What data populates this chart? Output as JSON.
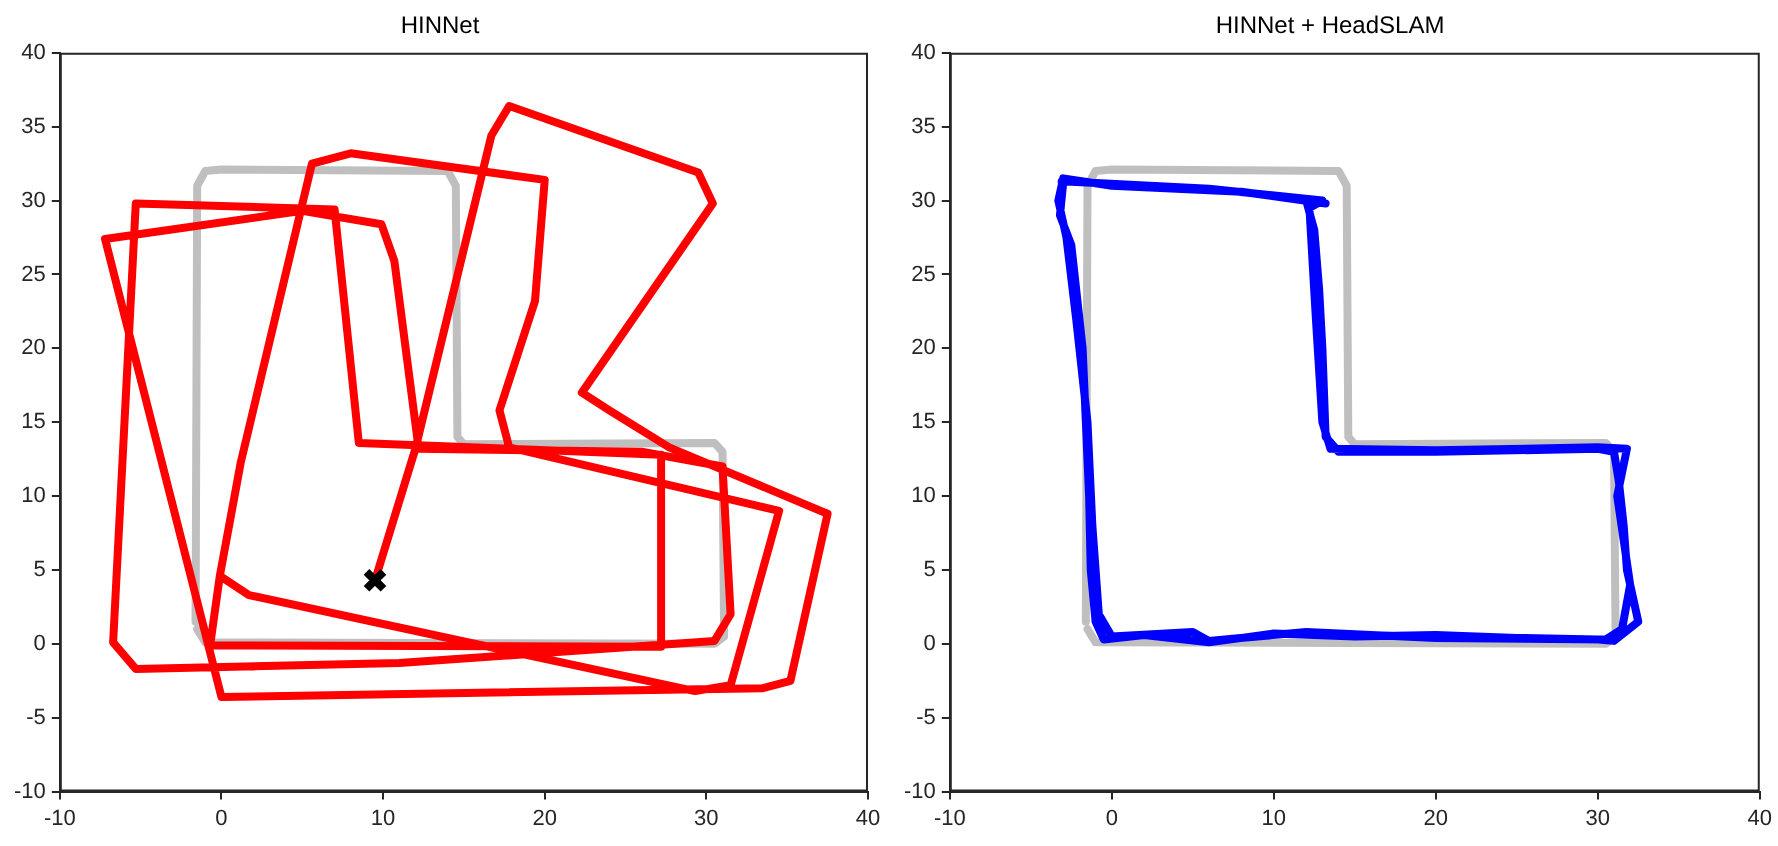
{
  "chart_data": [
    {
      "type": "line",
      "title": "HINNet",
      "xlim": [
        -10,
        40
      ],
      "ylim": [
        -10,
        40
      ],
      "xticks": [
        -10,
        0,
        10,
        20,
        30,
        40
      ],
      "yticks": [
        -10,
        -5,
        0,
        5,
        10,
        15,
        20,
        25,
        30,
        35,
        40
      ],
      "grid": false,
      "legend": false,
      "marker": "none",
      "line_style": "solid",
      "series": [
        {
          "type": "scatter",
          "color": "#000000",
          "marker": "cross",
          "x": [
            9.5
          ],
          "values": [
            4.3
          ]
        },
        {
          "color": "#ff0000",
          "x": [
            9.5,
            12,
            16.7,
            17.8,
            29.5,
            30.4,
            22.3,
            24,
            27.7,
            37.5,
            35.2,
            33.5,
            0,
            -7.2,
            5,
            9.9,
            10.7,
            12.2,
            26,
            31,
            31.5,
            30.5,
            11,
            -5.3,
            -6.7,
            -5.3,
            7,
            8.5,
            27.2,
            27.2,
            -0.7,
            -0.1,
            1.7,
            29.3,
            31.5,
            34.5,
            17.8,
            17.2,
            19.4,
            20,
            8,
            5.6,
            1.2,
            -0.1
          ],
          "values": [
            4.3,
            13.2,
            34.4,
            36.4,
            31.9,
            29.8,
            17,
            15.8,
            13.3,
            8.8,
            -2.5,
            -3,
            -3.6,
            27.4,
            29.3,
            28.4,
            25.9,
            13.2,
            13,
            12,
            2,
            0.2,
            -1.3,
            -1.7,
            0.1,
            29.8,
            29.4,
            13.6,
            12.8,
            -0.2,
            -0.1,
            4.6,
            3.3,
            -3.2,
            -2.8,
            9,
            13.3,
            15.8,
            23.2,
            31.4,
            33.2,
            32.5,
            12.3,
            4.6
          ]
        },
        {
          "color": "#bfbfbf",
          "x": [
            -1.6,
            -1.5,
            -1,
            0,
            14,
            14.5,
            14.6,
            15,
            30.5,
            31,
            31.1,
            30.5,
            -1,
            -1.5
          ],
          "values": [
            1.5,
            31,
            32,
            32.1,
            32,
            31,
            14,
            13.5,
            13.6,
            13,
            0.5,
            0,
            0.1,
            1
          ]
        }
      ]
    },
    {
      "type": "line",
      "title": "HINNet + HeadSLAM",
      "xlim": [
        -10,
        40
      ],
      "ylim": [
        -10,
        40
      ],
      "xticks": [
        -10,
        0,
        10,
        20,
        30,
        40
      ],
      "yticks": [
        -10,
        -5,
        0,
        5,
        10,
        15,
        20,
        25,
        30,
        35,
        40
      ],
      "grid": false,
      "legend": false,
      "marker": "none",
      "line_style": "solid",
      "series": [
        {
          "color": "#0000ff",
          "x": [
            -3,
            -3.2,
            -2.5,
            -1.8,
            -1.6,
            -1.4,
            -1.3,
            -1,
            -0.5,
            2,
            6,
            10,
            15,
            20,
            25,
            30,
            31,
            32.5,
            31.8,
            31.6,
            31.3,
            31,
            30,
            20,
            14,
            13.2,
            13,
            12.8,
            12.5,
            12,
            13.2,
            8,
            0,
            -3,
            -3.3,
            -2.8,
            -2.2,
            -1.5,
            -1.2,
            -0.8,
            0,
            5,
            6,
            12,
            20,
            30.5,
            31.5,
            32,
            31.2,
            31.8,
            30,
            20,
            13.5,
            13,
            12.6,
            12.2,
            13,
            6,
            -3.1,
            -2.9
          ],
          "values": [
            31.2,
            29,
            27,
            20,
            15,
            10,
            5,
            1.5,
            0.3,
            0.6,
            0.1,
            0.7,
            0.5,
            0.6,
            0.4,
            0.3,
            0.2,
            1.5,
            5,
            8,
            11,
            13,
            13.2,
            13,
            13,
            14,
            20,
            24,
            28,
            30,
            29.8,
            30.6,
            31,
            31.5,
            30,
            27.5,
            22,
            15,
            8,
            2,
            0.5,
            0.8,
            0.2,
            0.8,
            0.4,
            0.3,
            1,
            4,
            10,
            13.2,
            13.3,
            13.1,
            13.2,
            15,
            22,
            29.5,
            30,
            30.8,
            31.3,
            31.4
          ]
        },
        {
          "color": "#bfbfbf",
          "x": [
            -1.6,
            -1.5,
            -1,
            0,
            14,
            14.5,
            14.6,
            15,
            30.5,
            31,
            31.1,
            30.5,
            -1,
            -1.5
          ],
          "values": [
            1.5,
            31,
            32,
            32.1,
            32,
            31,
            14,
            13.5,
            13.6,
            13,
            0.5,
            0,
            0.1,
            1
          ]
        }
      ]
    }
  ]
}
